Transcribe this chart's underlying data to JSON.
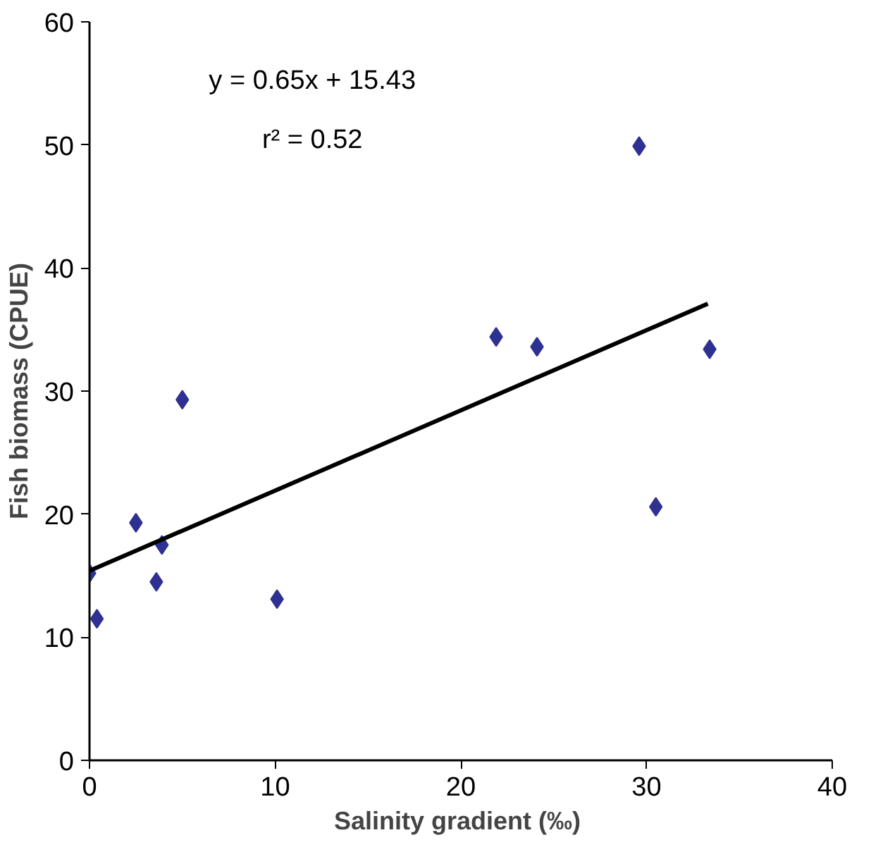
{
  "chart_data": {
    "type": "scatter",
    "xlabel": "Salinity gradient  (‰)",
    "ylabel": "Fish biomass (CPUE)",
    "xlim": [
      0,
      40
    ],
    "ylim": [
      0,
      60
    ],
    "xticks": [
      0,
      10,
      20,
      30,
      40
    ],
    "yticks": [
      0,
      10,
      20,
      30,
      40,
      50,
      60
    ],
    "grid": false,
    "marker": "diamond",
    "annotations": [
      "y = 0.65x + 15.43",
      "r² = 0.52"
    ],
    "series": [
      {
        "color": "#2e3192",
        "x": [
          0,
          0.4,
          2.5,
          3.6,
          3.9,
          5.0,
          10.1,
          21.9,
          24.1,
          29.6,
          30.5,
          33.4
        ],
        "values": [
          15.2,
          11.5,
          19.3,
          14.5,
          17.5,
          29.3,
          13.1,
          34.4,
          33.6,
          49.9,
          20.6,
          33.4
        ]
      },
      {
        "type": "line",
        "color": "#000000",
        "x": [
          0,
          33.3
        ],
        "values": [
          15.4,
          37.1
        ],
        "marker": "none"
      }
    ]
  }
}
